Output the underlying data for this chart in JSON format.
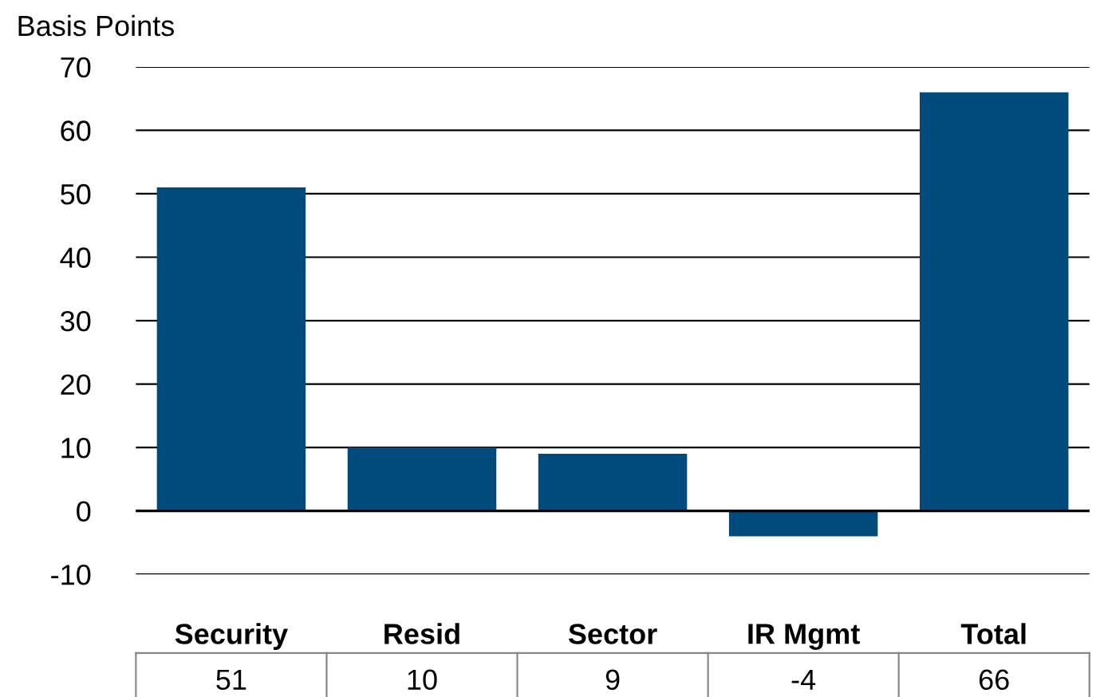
{
  "chart_data": {
    "type": "bar",
    "ylabel": "Basis Points",
    "categories": [
      "Security",
      "Resid",
      "Sector",
      "IR Mgmt",
      "Total"
    ],
    "values": [
      51,
      10,
      9,
      -4,
      66
    ],
    "color": "#004a7c",
    "ylim": [
      -10,
      70
    ],
    "yticks": [
      -10,
      0,
      10,
      20,
      30,
      40,
      50,
      60,
      70
    ],
    "grid": "y",
    "data_labels": true
  }
}
